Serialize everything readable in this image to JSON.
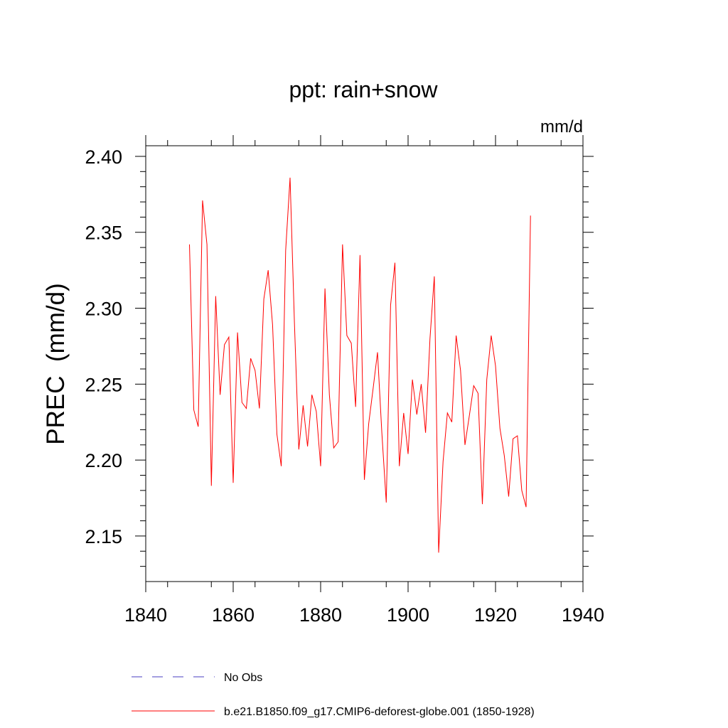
{
  "chart_data": {
    "type": "line",
    "title": "ppt: rain+snow",
    "units": "mm/d",
    "ylabel": "PREC  (mm/d)",
    "xlabel": "",
    "xlim": [
      1840,
      1940
    ],
    "ylim": [
      2.12,
      2.407
    ],
    "x_ticks": [
      1840,
      1860,
      1880,
      1900,
      1920,
      1940
    ],
    "x_tick_labels": [
      "1840",
      "1860",
      "1880",
      "1900",
      "1920",
      "1940"
    ],
    "y_ticks": [
      2.15,
      2.2,
      2.25,
      2.3,
      2.35,
      2.4
    ],
    "y_tick_labels": [
      "2.15",
      "2.20",
      "2.25",
      "2.30",
      "2.35",
      "2.40"
    ],
    "grid": false,
    "legend_position": "bottom",
    "series": [
      {
        "name": "No Obs",
        "color": "#4a3cc0",
        "dash": "dashed",
        "x": [],
        "y": []
      },
      {
        "name": "b.e21.B1850.f09_g17.CMIP6-deforest-globe.001 (1850-1928)",
        "color": "#ff0000",
        "dash": "solid",
        "x": [
          1850,
          1851,
          1852,
          1853,
          1854,
          1855,
          1856,
          1857,
          1858,
          1859,
          1860,
          1861,
          1862,
          1863,
          1864,
          1865,
          1866,
          1867,
          1868,
          1869,
          1870,
          1871,
          1872,
          1873,
          1874,
          1875,
          1876,
          1877,
          1878,
          1879,
          1880,
          1881,
          1882,
          1883,
          1884,
          1885,
          1886,
          1887,
          1888,
          1889,
          1890,
          1891,
          1892,
          1893,
          1894,
          1895,
          1896,
          1897,
          1898,
          1899,
          1900,
          1901,
          1902,
          1903,
          1904,
          1905,
          1906,
          1907,
          1908,
          1909,
          1910,
          1911,
          1912,
          1913,
          1914,
          1915,
          1916,
          1917,
          1918,
          1919,
          1920,
          1921,
          1922,
          1923,
          1924,
          1925,
          1926,
          1927,
          1928
        ],
        "y": [
          2.342,
          2.233,
          2.222,
          2.371,
          2.342,
          2.183,
          2.308,
          2.243,
          2.276,
          2.281,
          2.185,
          2.284,
          2.238,
          2.234,
          2.267,
          2.259,
          2.234,
          2.306,
          2.325,
          2.289,
          2.217,
          2.196,
          2.338,
          2.386,
          2.291,
          2.207,
          2.236,
          2.209,
          2.243,
          2.232,
          2.196,
          2.313,
          2.243,
          2.208,
          2.212,
          2.342,
          2.282,
          2.277,
          2.235,
          2.335,
          2.187,
          2.224,
          2.247,
          2.271,
          2.218,
          2.172,
          2.302,
          2.33,
          2.196,
          2.231,
          2.204,
          2.253,
          2.23,
          2.25,
          2.218,
          2.28,
          2.321,
          2.139,
          2.199,
          2.231,
          2.225,
          2.282,
          2.259,
          2.21,
          2.229,
          2.249,
          2.244,
          2.171,
          2.253,
          2.282,
          2.262,
          2.221,
          2.203,
          2.176,
          2.214,
          2.216,
          2.18,
          2.169,
          2.361
        ]
      }
    ]
  }
}
